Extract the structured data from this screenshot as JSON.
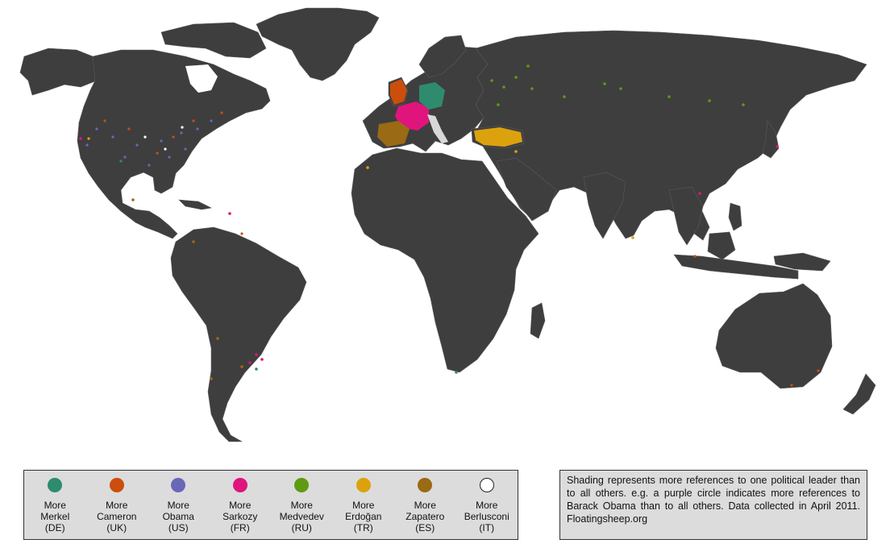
{
  "colors": {
    "ocean": "#ffffff",
    "land": "#3e3e3e",
    "borders": "#5a5a5a"
  },
  "legend": [
    {
      "key": "merkel",
      "line1": "More",
      "line2": "Merkel",
      "line3": "(DE)",
      "color": "#2e8b6e"
    },
    {
      "key": "cameron",
      "line1": "More",
      "line2": "Cameron",
      "line3": "(UK)",
      "color": "#cc4e0c"
    },
    {
      "key": "obama",
      "line1": "More",
      "line2": "Obama",
      "line3": "(US)",
      "color": "#6a66b8"
    },
    {
      "key": "sarkozy",
      "line1": "More",
      "line2": "Sarkozy",
      "line3": "(FR)",
      "color": "#e0147d"
    },
    {
      "key": "medvedev",
      "line1": "More",
      "line2": "Medvedev",
      "line3": "(RU)",
      "color": "#5e9b12"
    },
    {
      "key": "erdogan",
      "line1": "More",
      "line2": "Erdoğan",
      "line3": "(TR)",
      "color": "#dca20e"
    },
    {
      "key": "zapatero",
      "line1": "More",
      "line2": "Zapatero",
      "line3": "(ES)",
      "color": "#9a6a14"
    },
    {
      "key": "berlusconi",
      "line1": "More",
      "line2": "Berlusconi",
      "line3": "(IT)",
      "color": "#ffffff"
    }
  ],
  "note": {
    "text": "Shading represents more references to one political leader than to all others. e.g. a purple circle indicates more references to Barack Obama than to all others. Data collected in April 2011. Floatingsheep.org"
  }
}
